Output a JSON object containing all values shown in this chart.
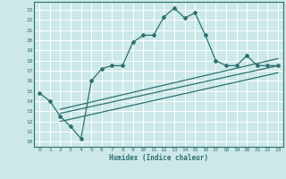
{
  "xlabel": "Humidex (Indice chaleur)",
  "bg_color": "#cce8e8",
  "grid_color": "#ffffff",
  "line_color": "#2d7070",
  "xlim": [
    -0.5,
    23.5
  ],
  "ylim": [
    9.5,
    23.8
  ],
  "xticks": [
    0,
    1,
    2,
    3,
    4,
    5,
    6,
    7,
    8,
    9,
    10,
    11,
    12,
    13,
    14,
    15,
    16,
    17,
    18,
    19,
    20,
    21,
    22,
    23
  ],
  "yticks": [
    10,
    11,
    12,
    13,
    14,
    15,
    16,
    17,
    18,
    19,
    20,
    21,
    22,
    23
  ],
  "main_line_x": [
    0,
    1,
    2,
    3,
    4,
    5,
    6,
    7,
    8,
    9,
    10,
    11,
    12,
    13,
    14,
    15,
    16,
    17,
    18,
    19,
    20,
    21,
    22,
    23
  ],
  "main_line_y": [
    14.8,
    14.0,
    12.5,
    11.5,
    10.3,
    16.0,
    17.2,
    17.5,
    17.5,
    19.8,
    20.5,
    20.5,
    22.3,
    23.2,
    22.2,
    22.7,
    20.5,
    18.0,
    17.5,
    17.5,
    18.5,
    17.5,
    17.5,
    17.5
  ],
  "line2_x": [
    2,
    23
  ],
  "line2_y": [
    12.8,
    17.5
  ],
  "line3_x": [
    2,
    23
  ],
  "line3_y": [
    13.2,
    18.2
  ],
  "line4_x": [
    2,
    23
  ],
  "line4_y": [
    12.0,
    16.8
  ]
}
